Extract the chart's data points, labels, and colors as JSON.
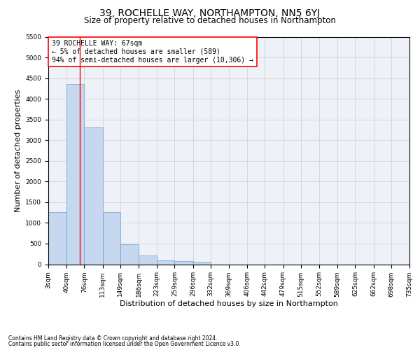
{
  "title": "39, ROCHELLE WAY, NORTHAMPTON, NN5 6YJ",
  "subtitle": "Size of property relative to detached houses in Northampton",
  "xlabel": "Distribution of detached houses by size in Northampton",
  "ylabel": "Number of detached properties",
  "footnote1": "Contains HM Land Registry data © Crown copyright and database right 2024.",
  "footnote2": "Contains public sector information licensed under the Open Government Licence v3.0.",
  "annotation_line1": "39 ROCHELLE WAY: 67sqm",
  "annotation_line2": "← 5% of detached houses are smaller (589)",
  "annotation_line3": "94% of semi-detached houses are larger (10,306) →",
  "bar_edges": [
    3,
    40,
    76,
    113,
    149,
    186,
    223,
    259,
    296,
    332,
    369,
    406,
    442,
    479,
    515,
    552,
    589,
    625,
    662,
    698,
    735
  ],
  "bar_heights": [
    1260,
    4350,
    3310,
    1260,
    490,
    220,
    90,
    80,
    60,
    0,
    0,
    0,
    0,
    0,
    0,
    0,
    0,
    0,
    0,
    0
  ],
  "bar_color": "#c5d8f0",
  "bar_edgecolor": "#6aa0d4",
  "vertical_line_x": 67,
  "vertical_line_color": "red",
  "annotation_box_color": "white",
  "annotation_box_edgecolor": "red",
  "ylim": [
    0,
    5500
  ],
  "yticks": [
    0,
    500,
    1000,
    1500,
    2000,
    2500,
    3000,
    3500,
    4000,
    4500,
    5000,
    5500
  ],
  "grid_color": "#cccccc",
  "background_color": "#eef2f8",
  "title_fontsize": 10,
  "subtitle_fontsize": 8.5,
  "xlabel_fontsize": 8,
  "ylabel_fontsize": 8,
  "tick_fontsize": 6.5,
  "annotation_fontsize": 7,
  "footnote_fontsize": 5.5
}
